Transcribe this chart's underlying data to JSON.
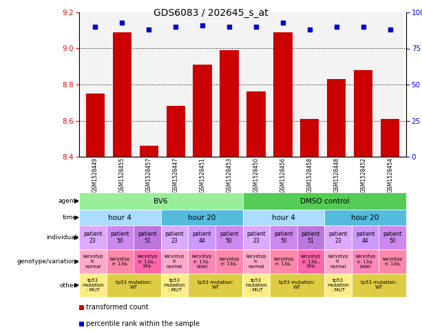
{
  "title": "GDS6083 / 202645_s_at",
  "samples": [
    "GSM1528449",
    "GSM1528455",
    "GSM1528457",
    "GSM1528447",
    "GSM1528451",
    "GSM1528453",
    "GSM1528450",
    "GSM1528456",
    "GSM1528458",
    "GSM1528448",
    "GSM1528452",
    "GSM1528454"
  ],
  "bar_values": [
    8.75,
    9.09,
    8.46,
    8.68,
    8.91,
    8.99,
    8.76,
    9.09,
    8.61,
    8.83,
    8.88,
    8.61
  ],
  "dot_values": [
    90,
    93,
    88,
    90,
    91,
    90,
    90,
    93,
    88,
    90,
    90,
    88
  ],
  "ylim_left": [
    8.4,
    9.2
  ],
  "ylim_right": [
    0,
    100
  ],
  "yticks_left": [
    8.4,
    8.6,
    8.8,
    9.0,
    9.2
  ],
  "yticks_right": [
    0,
    25,
    50,
    75,
    100
  ],
  "ytick_labels_right": [
    "0",
    "25",
    "50",
    "75",
    "100%"
  ],
  "bar_color": "#CC0000",
  "dot_color": "#0000CC",
  "agent_groups": [
    {
      "text": "BV6",
      "span": 6,
      "color": "#99EE99"
    },
    {
      "text": "DMSO control",
      "span": 6,
      "color": "#55CC55"
    }
  ],
  "time_groups": [
    {
      "text": "hour 4",
      "span": 3,
      "color": "#AADDFF"
    },
    {
      "text": "hour 20",
      "span": 3,
      "color": "#55BBDD"
    },
    {
      "text": "hour 4",
      "span": 3,
      "color": "#AADDFF"
    },
    {
      "text": "hour 20",
      "span": 3,
      "color": "#55BBDD"
    }
  ],
  "individual_cells": [
    {
      "text": "patient\n23",
      "color": "#DDAAFF"
    },
    {
      "text": "patient\n50",
      "color": "#CC88EE"
    },
    {
      "text": "patient\n51",
      "color": "#BB77DD"
    },
    {
      "text": "patient\n23",
      "color": "#DDAAFF"
    },
    {
      "text": "patient\n44",
      "color": "#CC99FF"
    },
    {
      "text": "patient\n50",
      "color": "#CC88EE"
    },
    {
      "text": "patient\n23",
      "color": "#DDAAFF"
    },
    {
      "text": "patient\n50",
      "color": "#CC88EE"
    },
    {
      "text": "patient\n51",
      "color": "#BB77DD"
    },
    {
      "text": "patient\n23",
      "color": "#DDAAFF"
    },
    {
      "text": "patient\n44",
      "color": "#CC99FF"
    },
    {
      "text": "patient\n50",
      "color": "#CC88EE"
    }
  ],
  "genotype_cells": [
    {
      "text": "karyotyp\ne:\nnormal",
      "color": "#FFAACC"
    },
    {
      "text": "karyotyp\ne: 13q-",
      "color": "#FF88AA"
    },
    {
      "text": "karyotyp\ne: 13q-,\n14q-",
      "color": "#FF66AA"
    },
    {
      "text": "karyotyp\ne:\nnormal",
      "color": "#FFAACC"
    },
    {
      "text": "karyotyp\ne: 13q-\nbidel",
      "color": "#FF88BB"
    },
    {
      "text": "karyotyp\ne: 13q-",
      "color": "#FF88AA"
    },
    {
      "text": "karyotyp\ne:\nnormal",
      "color": "#FFAACC"
    },
    {
      "text": "karyotyp\ne: 13q-",
      "color": "#FF88AA"
    },
    {
      "text": "karyotyp\ne: 13q-,\n14q-",
      "color": "#FF66AA"
    },
    {
      "text": "karyotyp\ne:\nnormal",
      "color": "#FFAACC"
    },
    {
      "text": "karyotyp\ne: 13q-\nbidel",
      "color": "#FF88BB"
    },
    {
      "text": "karyotyp\ne: 13q-",
      "color": "#FF88AA"
    }
  ],
  "other_groups": [
    {
      "text": "tp53\nmutation\n: MUT",
      "span": 1,
      "color": "#FFEE88"
    },
    {
      "text": "tp53 mutation:\nWT",
      "span": 2,
      "color": "#DDCC44"
    },
    {
      "text": "tp53\nmutation\n: MUT",
      "span": 1,
      "color": "#FFEE88"
    },
    {
      "text": "tp53 mutation:\nWT",
      "span": 2,
      "color": "#DDCC44"
    },
    {
      "text": "tp53\nmutation\n: MUT",
      "span": 1,
      "color": "#FFEE88"
    },
    {
      "text": "tp53 mutation:\nWT",
      "span": 2,
      "color": "#DDCC44"
    },
    {
      "text": "tp53\nmutation\n: MUT",
      "span": 1,
      "color": "#FFEE88"
    },
    {
      "text": "tp53 mutation:\nWT",
      "span": 2,
      "color": "#DDCC44"
    }
  ],
  "row_labels": [
    "agent",
    "time",
    "individual",
    "genotype/variation",
    "other"
  ],
  "legend_items": [
    {
      "label": "transformed count",
      "color": "#CC0000"
    },
    {
      "label": "percentile rank within the sample",
      "color": "#0000CC"
    }
  ]
}
